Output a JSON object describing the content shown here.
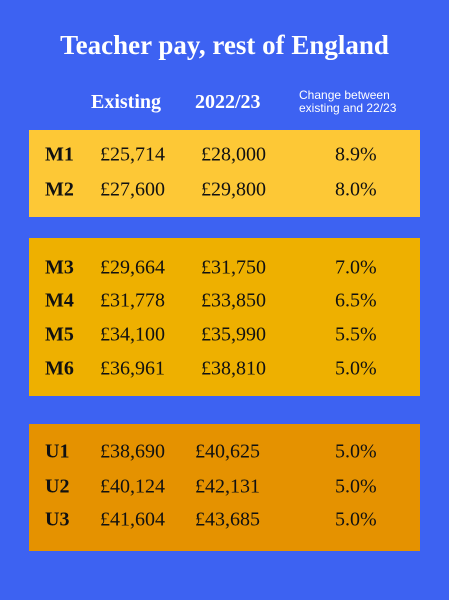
{
  "title": "Teacher pay, rest of England",
  "headers": {
    "existing": "Existing",
    "new": "2022/23",
    "change": "Change between existing and 22/23"
  },
  "groups": [
    {
      "rows": [
        [
          "M1",
          "£25,714",
          "£28,000",
          "8.9%"
        ],
        [
          "M2",
          "£27,600",
          "£29,800",
          "8.0%"
        ]
      ]
    },
    {
      "rows": [
        [
          "M3",
          "£29,664",
          "£31,750",
          "7.0%"
        ],
        [
          "M4",
          "£31,778",
          "£33,850",
          "6.5%"
        ],
        [
          "M5",
          "£34,100",
          "£35,990",
          "5.5%"
        ],
        [
          "M6",
          "£36,961",
          "£38,810",
          "5.0%"
        ]
      ]
    },
    {
      "rows": [
        [
          "U1",
          "£38,690",
          "£40,625",
          "5.0%"
        ],
        [
          "U2",
          "£40,124",
          "£42,131",
          "5.0%"
        ],
        [
          "U3",
          "£41,604",
          "£43,685",
          "5.0%"
        ]
      ]
    }
  ]
}
